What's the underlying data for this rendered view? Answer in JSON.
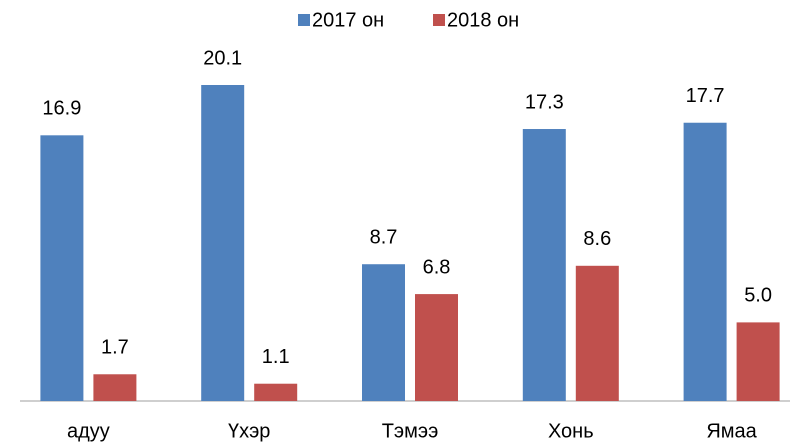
{
  "chart_data": {
    "type": "bar",
    "categories": [
      "адуу",
      "Үхэр",
      "Тэмээ",
      "Хонь",
      "Ямаа"
    ],
    "series": [
      {
        "name": "2017 он",
        "color": "#4f81bd",
        "values": [
          16.9,
          20.1,
          8.7,
          17.3,
          17.7
        ]
      },
      {
        "name": "2018 он",
        "color": "#c0504d",
        "values": [
          1.7,
          1.1,
          6.8,
          8.6,
          5.0
        ],
        "value_labels": [
          "1.7",
          "1.1",
          "6.8",
          "8.6",
          "5.0"
        ]
      }
    ],
    "legend": "top"
  }
}
